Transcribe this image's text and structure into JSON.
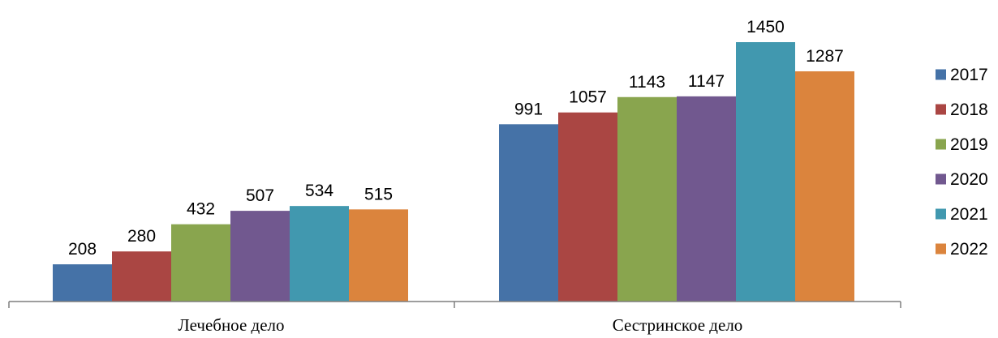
{
  "chart_data": {
    "type": "bar",
    "categories": [
      "Лечебное дело",
      "Сестринское дело"
    ],
    "series": [
      {
        "name": "2017",
        "color": "#4572A7",
        "values": [
          208,
          991
        ]
      },
      {
        "name": "2018",
        "color": "#AA4643",
        "values": [
          280,
          1057
        ]
      },
      {
        "name": "2019",
        "color": "#89A54E",
        "values": [
          432,
          1143
        ]
      },
      {
        "name": "2020",
        "color": "#71588F",
        "values": [
          507,
          1147
        ]
      },
      {
        "name": "2021",
        "color": "#4198AF",
        "values": [
          534,
          1450
        ]
      },
      {
        "name": "2022",
        "color": "#DB843D",
        "values": [
          515,
          1287
        ]
      }
    ],
    "ylim": [
      0,
      1600
    ],
    "grid": false,
    "legend_position": "right",
    "data_labels": true
  }
}
